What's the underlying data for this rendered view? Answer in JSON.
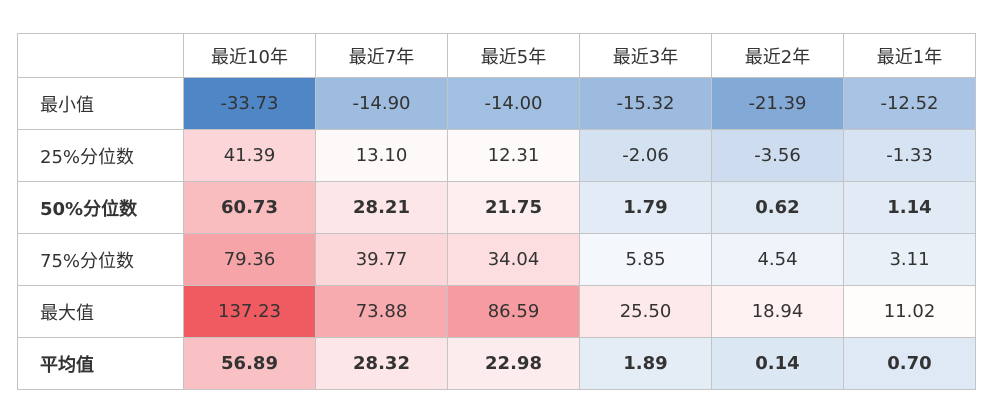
{
  "table": {
    "corner": "",
    "columns": [
      "最近10年",
      "最近7年",
      "最近5年",
      "最近3年",
      "最近2年",
      "最近1年"
    ],
    "rows": [
      {
        "label": "最小值",
        "bold": false,
        "cells": [
          "-33.73",
          "-14.90",
          "-14.00",
          "-15.32",
          "-21.39",
          "-12.52"
        ]
      },
      {
        "label": "25%分位数",
        "bold": false,
        "cells": [
          "41.39",
          "13.10",
          "12.31",
          "-2.06",
          "-3.56",
          "-1.33"
        ]
      },
      {
        "label": "50%分位数",
        "bold": true,
        "cells": [
          "60.73",
          "28.21",
          "21.75",
          "1.79",
          "0.62",
          "1.14"
        ]
      },
      {
        "label": "75%分位数",
        "bold": false,
        "cells": [
          "79.36",
          "39.77",
          "34.04",
          "5.85",
          "4.54",
          "3.11"
        ]
      },
      {
        "label": "最大值",
        "bold": false,
        "cells": [
          "137.23",
          "73.88",
          "86.59",
          "25.50",
          "18.94",
          "11.02"
        ]
      },
      {
        "label": "平均值",
        "bold": true,
        "cells": [
          "56.89",
          "28.32",
          "22.98",
          "1.89",
          "0.14",
          "0.70"
        ]
      }
    ],
    "colors": {
      "low": "#4f86c6",
      "high": "#f05a61",
      "mid": "#ffffff"
    }
  }
}
